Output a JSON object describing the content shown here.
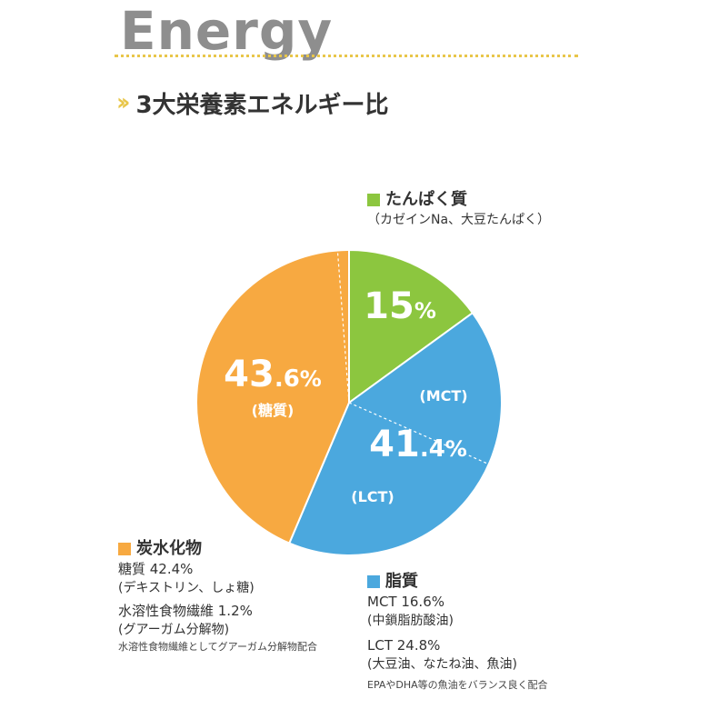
{
  "header": {
    "title": "Energy"
  },
  "section": {
    "title": "3大栄養素エネルギー比",
    "accent_color": "#e8c64a"
  },
  "chart_data": {
    "type": "pie",
    "slices": [
      {
        "name": "たんぱく質",
        "value": 15,
        "label": "15%",
        "color": "#8cc63f"
      },
      {
        "name": "脂質",
        "value": 41.4,
        "label": "41.4%",
        "color": "#4ba8de",
        "sub_labels": [
          "(MCT)",
          "(LCT)"
        ],
        "parts": [
          16.6,
          24.8
        ]
      },
      {
        "name": "炭水化物",
        "value": 43.6,
        "label": "43.6%",
        "color": "#f7a941",
        "sub_labels": [
          "(糖質)"
        ],
        "parts": [
          42.4,
          1.2
        ]
      }
    ]
  },
  "legend": {
    "protein": {
      "title": "たんぱく質",
      "sub": "（カゼインNa、大豆たんぱく）"
    },
    "fat": {
      "title": "脂質",
      "mct_value": "MCT 16.6%",
      "mct_sub": "(中鎖脂肪酸油)",
      "lct_value": "LCT 24.8%",
      "lct_sub": "(大豆油、なたね油、魚油)",
      "note": "EPAやDHA等の魚油をバランス良く配合"
    },
    "carb": {
      "title": "炭水化物",
      "sugar_value": "糖質 42.4%",
      "sugar_sub": "(デキストリン、しょ糖)",
      "fiber_value": "水溶性食物繊維 1.2%",
      "fiber_sub": "(グアーガム分解物)",
      "note": "水溶性食物繊維としてグアーガム分解物配合"
    }
  }
}
